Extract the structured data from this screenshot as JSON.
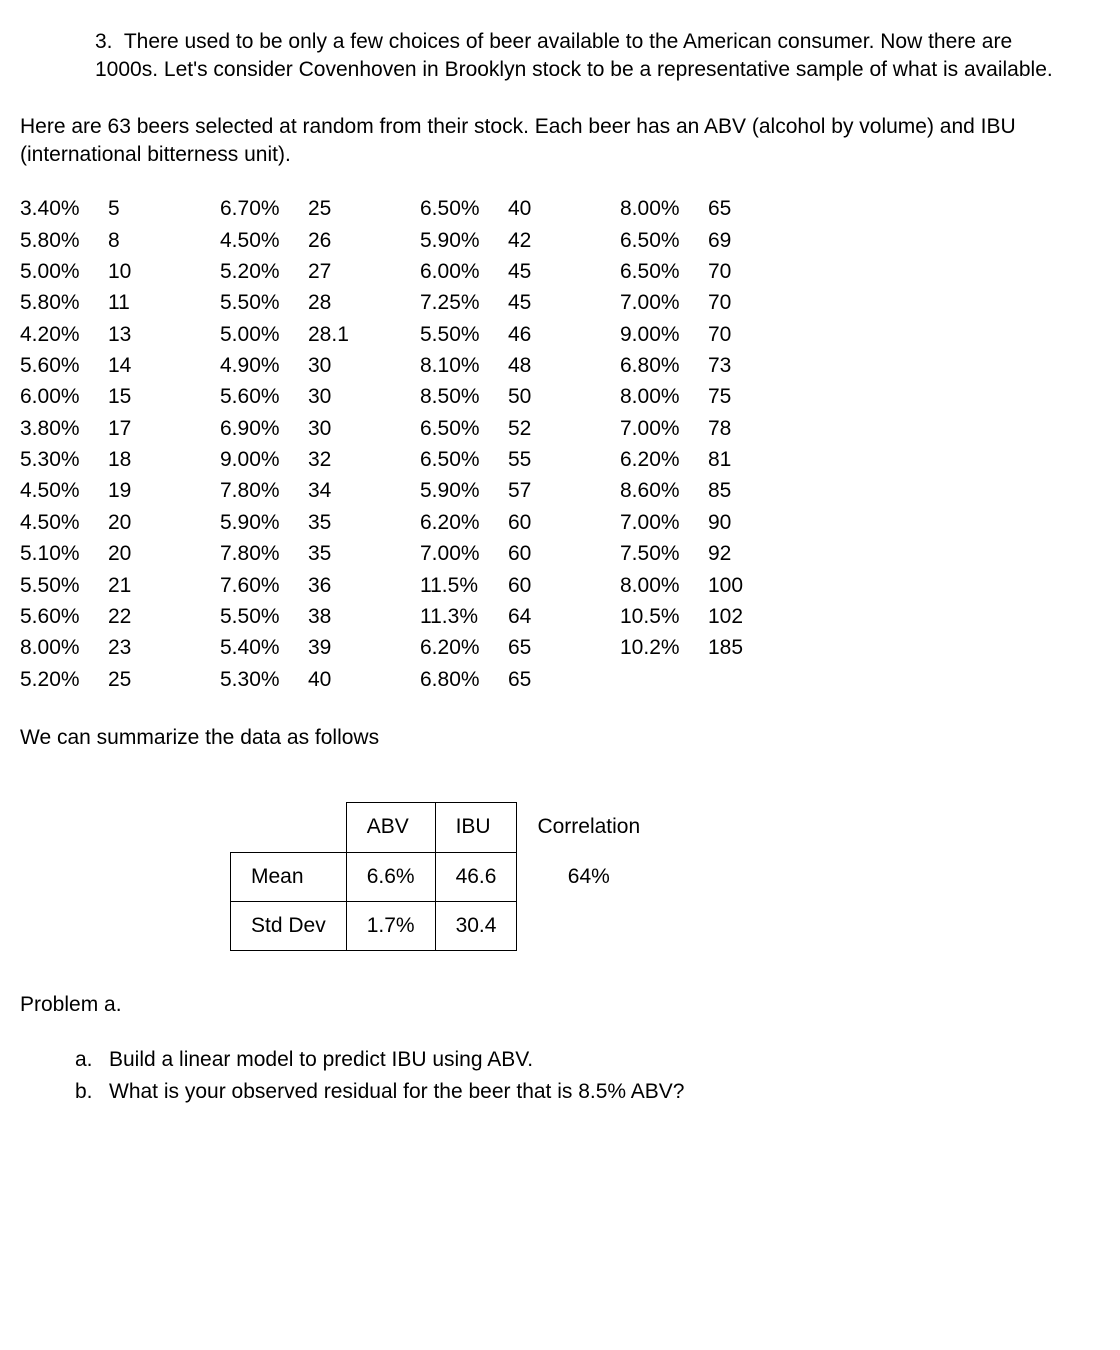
{
  "intro": {
    "number": "3.",
    "para1": "There used to be only a few choices of beer available to the American consumer. Now there are 1000s. Let's consider Covenhoven in Brooklyn stock to be a representative sample of what is available.",
    "para2": "Here are 63 beers selected at random from their stock. Each beer has an ABV (alcohol by volume) and IBU (international bitterness unit)."
  },
  "data_pairs": [
    [
      "3.40%",
      "5"
    ],
    [
      "5.80%",
      "8"
    ],
    [
      "5.00%",
      "10"
    ],
    [
      "5.80%",
      "11"
    ],
    [
      "4.20%",
      "13"
    ],
    [
      "5.60%",
      "14"
    ],
    [
      "6.00%",
      "15"
    ],
    [
      "3.80%",
      "17"
    ],
    [
      "5.30%",
      "18"
    ],
    [
      "4.50%",
      "19"
    ],
    [
      "4.50%",
      "20"
    ],
    [
      "5.10%",
      "20"
    ],
    [
      "5.50%",
      "21"
    ],
    [
      "5.60%",
      "22"
    ],
    [
      "8.00%",
      "23"
    ],
    [
      "5.20%",
      "25"
    ],
    [
      "6.70%",
      "25"
    ],
    [
      "4.50%",
      "26"
    ],
    [
      "5.20%",
      "27"
    ],
    [
      "5.50%",
      "28"
    ],
    [
      "5.00%",
      "28.1"
    ],
    [
      "4.90%",
      "30"
    ],
    [
      "5.60%",
      "30"
    ],
    [
      "6.90%",
      "30"
    ],
    [
      "9.00%",
      "32"
    ],
    [
      "7.80%",
      "34"
    ],
    [
      "5.90%",
      "35"
    ],
    [
      "7.80%",
      "35"
    ],
    [
      "7.60%",
      "36"
    ],
    [
      "5.50%",
      "38"
    ],
    [
      "5.40%",
      "39"
    ],
    [
      "5.30%",
      "40"
    ],
    [
      "6.50%",
      "40"
    ],
    [
      "5.90%",
      "42"
    ],
    [
      "6.00%",
      "45"
    ],
    [
      "7.25%",
      "45"
    ],
    [
      "5.50%",
      "46"
    ],
    [
      "8.10%",
      "48"
    ],
    [
      "8.50%",
      "50"
    ],
    [
      "6.50%",
      "52"
    ],
    [
      "6.50%",
      "55"
    ],
    [
      "5.90%",
      "57"
    ],
    [
      "6.20%",
      "60"
    ],
    [
      "7.00%",
      "60"
    ],
    [
      "11.5%",
      "60"
    ],
    [
      "11.3%",
      "64"
    ],
    [
      "6.20%",
      "65"
    ],
    [
      "6.80%",
      "65"
    ],
    [
      "8.00%",
      "65"
    ],
    [
      "6.50%",
      "69"
    ],
    [
      "6.50%",
      "70"
    ],
    [
      "7.00%",
      "70"
    ],
    [
      "9.00%",
      "70"
    ],
    [
      "6.80%",
      "73"
    ],
    [
      "8.00%",
      "75"
    ],
    [
      "7.00%",
      "78"
    ],
    [
      "6.20%",
      "81"
    ],
    [
      "8.60%",
      "85"
    ],
    [
      "7.00%",
      "90"
    ],
    [
      "7.50%",
      "92"
    ],
    [
      "8.00%",
      "100"
    ],
    [
      "10.5%",
      "102"
    ],
    [
      "10.2%",
      "185"
    ]
  ],
  "summary_line": "We can summarize the data as follows",
  "summary_table": {
    "headers": [
      "",
      "ABV",
      "IBU",
      "Correlation"
    ],
    "rows": [
      [
        "Mean",
        "6.6%",
        "46.6",
        "64%"
      ],
      [
        "Std Dev",
        "1.7%",
        "30.4",
        ""
      ]
    ]
  },
  "problem_label": "Problem a.",
  "subquestions": [
    {
      "letter": "a.",
      "text": "Build a linear model to predict IBU using ABV."
    },
    {
      "letter": "b.",
      "text": "What is your observed residual for the beer that is 8.5%  ABV?"
    }
  ]
}
